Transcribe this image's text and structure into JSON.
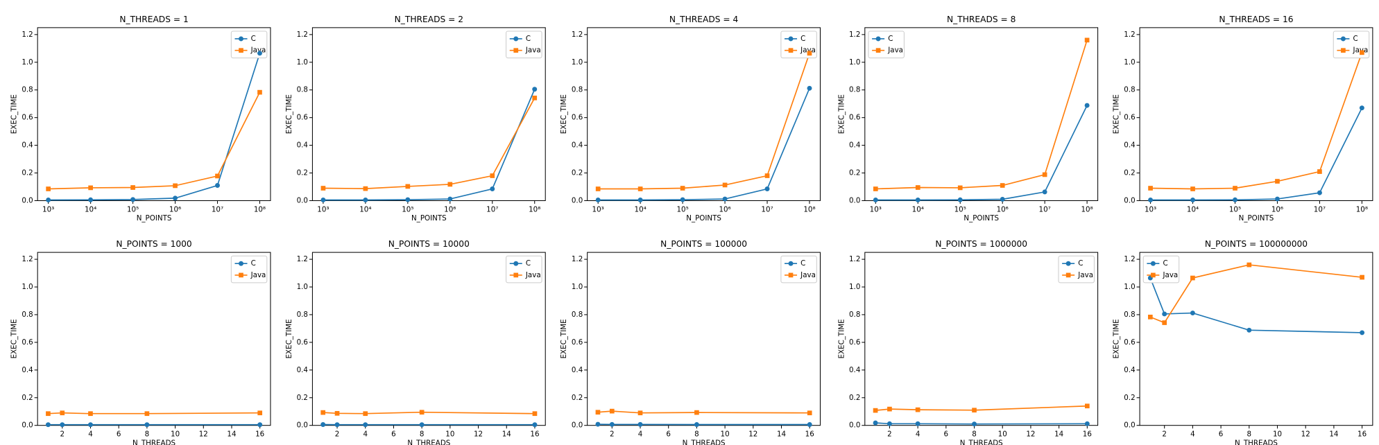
{
  "chart_data": [
    {
      "type": "line",
      "title": "N_THREADS = 1",
      "xlabel": "N_POINTS",
      "ylabel": "EXEC_TIME",
      "xscale": "log",
      "legend": "upper right",
      "x": [
        1000,
        10000,
        100000,
        1000000,
        10000000,
        100000000
      ],
      "series": [
        {
          "name": "C",
          "color": "#1f77b4",
          "marker": "circle",
          "values": [
            0.005,
            0.006,
            0.008,
            0.018,
            0.11,
            1.065
          ]
        },
        {
          "name": "Java",
          "color": "#ff7f0e",
          "marker": "square",
          "values": [
            0.085,
            0.093,
            0.095,
            0.108,
            0.178,
            0.783
          ]
        }
      ],
      "xlim": [
        557,
        179500000
      ],
      "xticks": [
        {
          "value": 1000,
          "label": "10³"
        },
        {
          "value": 10000,
          "label": "10⁴"
        },
        {
          "value": 100000,
          "label": "10⁵"
        },
        {
          "value": 1000000,
          "label": "10⁶"
        },
        {
          "value": 10000000,
          "label": "10⁷"
        },
        {
          "value": 100000000,
          "label": "10⁸"
        }
      ],
      "ylim": [
        0,
        1.25
      ],
      "yticks": [
        {
          "value": 0,
          "label": "0.0"
        },
        0.2,
        0.4,
        0.6,
        0.8,
        {
          "value": 1,
          "label": "1.0"
        },
        1.2
      ]
    },
    {
      "type": "line",
      "title": "N_THREADS = 2",
      "xlabel": "N_POINTS",
      "ylabel": "EXEC_TIME",
      "xscale": "log",
      "legend": "upper right",
      "x": [
        1000,
        10000,
        100000,
        1000000,
        10000000,
        100000000
      ],
      "series": [
        {
          "name": "C",
          "color": "#1f77b4",
          "marker": "circle",
          "values": [
            0.005,
            0.005,
            0.007,
            0.012,
            0.085,
            0.805
          ]
        },
        {
          "name": "Java",
          "color": "#ff7f0e",
          "marker": "square",
          "values": [
            0.09,
            0.087,
            0.103,
            0.118,
            0.18,
            0.742
          ]
        }
      ],
      "xlim": [
        557,
        179500000
      ],
      "xticks": [
        {
          "value": 1000,
          "label": "10³"
        },
        {
          "value": 10000,
          "label": "10⁴"
        },
        {
          "value": 100000,
          "label": "10⁵"
        },
        {
          "value": 1000000,
          "label": "10⁶"
        },
        {
          "value": 10000000,
          "label": "10⁷"
        },
        {
          "value": 100000000,
          "label": "10⁸"
        }
      ],
      "ylim": [
        0,
        1.25
      ],
      "yticks": [
        {
          "value": 0,
          "label": "0.0"
        },
        0.2,
        0.4,
        0.6,
        0.8,
        {
          "value": 1,
          "label": "1.0"
        },
        1.2
      ]
    },
    {
      "type": "line",
      "title": "N_THREADS = 4",
      "xlabel": "N_POINTS",
      "ylabel": "EXEC_TIME",
      "xscale": "log",
      "legend": "upper right",
      "x": [
        1000,
        10000,
        100000,
        1000000,
        10000000,
        100000000
      ],
      "series": [
        {
          "name": "C",
          "color": "#1f77b4",
          "marker": "circle",
          "values": [
            0.005,
            0.005,
            0.007,
            0.012,
            0.085,
            0.812
          ]
        },
        {
          "name": "Java",
          "color": "#ff7f0e",
          "marker": "square",
          "values": [
            0.085,
            0.085,
            0.09,
            0.113,
            0.18,
            1.065
          ]
        }
      ],
      "xlim": [
        557,
        179500000
      ],
      "xticks": [
        {
          "value": 1000,
          "label": "10³"
        },
        {
          "value": 10000,
          "label": "10⁴"
        },
        {
          "value": 100000,
          "label": "10⁵"
        },
        {
          "value": 1000000,
          "label": "10⁶"
        },
        {
          "value": 10000000,
          "label": "10⁷"
        },
        {
          "value": 100000000,
          "label": "10⁸"
        }
      ],
      "ylim": [
        0,
        1.25
      ],
      "yticks": [
        {
          "value": 0,
          "label": "0.0"
        },
        0.2,
        0.4,
        0.6,
        0.8,
        {
          "value": 1,
          "label": "1.0"
        },
        1.2
      ]
    },
    {
      "type": "line",
      "title": "N_THREADS = 8",
      "xlabel": "N_POINTS",
      "ylabel": "EXEC_TIME",
      "xscale": "log",
      "legend": "upper left",
      "x": [
        1000,
        10000,
        100000,
        1000000,
        10000000,
        100000000
      ],
      "series": [
        {
          "name": "C",
          "color": "#1f77b4",
          "marker": "circle",
          "values": [
            0.005,
            0.005,
            0.006,
            0.01,
            0.063,
            0.688
          ]
        },
        {
          "name": "Java",
          "color": "#ff7f0e",
          "marker": "square",
          "values": [
            0.085,
            0.095,
            0.093,
            0.11,
            0.188,
            1.16
          ]
        }
      ],
      "xlim": [
        557,
        179500000
      ],
      "xticks": [
        {
          "value": 1000,
          "label": "10³"
        },
        {
          "value": 10000,
          "label": "10⁴"
        },
        {
          "value": 100000,
          "label": "10⁵"
        },
        {
          "value": 1000000,
          "label": "10⁶"
        },
        {
          "value": 10000000,
          "label": "10⁷"
        },
        {
          "value": 100000000,
          "label": "10⁸"
        }
      ],
      "ylim": [
        0,
        1.25
      ],
      "yticks": [
        {
          "value": 0,
          "label": "0.0"
        },
        0.2,
        0.4,
        0.6,
        0.8,
        {
          "value": 1,
          "label": "1.0"
        },
        1.2
      ]
    },
    {
      "type": "line",
      "title": "N_THREADS = 16",
      "xlabel": "N_POINTS",
      "ylabel": "EXEC_TIME",
      "xscale": "log",
      "legend": "upper right",
      "x": [
        1000,
        10000,
        100000,
        1000000,
        10000000,
        100000000
      ],
      "series": [
        {
          "name": "C",
          "color": "#1f77b4",
          "marker": "circle",
          "values": [
            0.005,
            0.005,
            0.006,
            0.012,
            0.057,
            0.67
          ]
        },
        {
          "name": "Java",
          "color": "#ff7f0e",
          "marker": "square",
          "values": [
            0.09,
            0.085,
            0.09,
            0.14,
            0.21,
            1.07
          ]
        }
      ],
      "xlim": [
        557,
        179500000
      ],
      "xticks": [
        {
          "value": 1000,
          "label": "10³"
        },
        {
          "value": 10000,
          "label": "10⁴"
        },
        {
          "value": 100000,
          "label": "10⁵"
        },
        {
          "value": 1000000,
          "label": "10⁶"
        },
        {
          "value": 10000000,
          "label": "10⁷"
        },
        {
          "value": 100000000,
          "label": "10⁸"
        }
      ],
      "ylim": [
        0,
        1.25
      ],
      "yticks": [
        {
          "value": 0,
          "label": "0.0"
        },
        0.2,
        0.4,
        0.6,
        0.8,
        {
          "value": 1,
          "label": "1.0"
        },
        1.2
      ]
    },
    {
      "type": "line",
      "title": "N_POINTS = 1000",
      "xlabel": "N_THREADS",
      "ylabel": "EXEC_TIME",
      "legend": "upper right",
      "x": [
        1,
        2,
        4,
        8,
        16
      ],
      "series": [
        {
          "name": "C",
          "color": "#1f77b4",
          "marker": "circle",
          "values": [
            0.005,
            0.005,
            0.005,
            0.005,
            0.005
          ]
        },
        {
          "name": "Java",
          "color": "#ff7f0e",
          "marker": "square",
          "values": [
            0.085,
            0.09,
            0.085,
            0.085,
            0.09
          ]
        }
      ],
      "xlim": [
        0.25,
        16.75
      ],
      "xticks": [
        2,
        4,
        6,
        8,
        10,
        12,
        14,
        16
      ],
      "ylim": [
        0,
        1.25
      ],
      "yticks": [
        {
          "value": 0,
          "label": "0.0"
        },
        0.2,
        0.4,
        0.6,
        0.8,
        {
          "value": 1,
          "label": "1.0"
        },
        1.2
      ]
    },
    {
      "type": "line",
      "title": "N_POINTS = 10000",
      "xlabel": "N_THREADS",
      "ylabel": "EXEC_TIME",
      "legend": "upper right",
      "x": [
        1,
        2,
        4,
        8,
        16
      ],
      "series": [
        {
          "name": "C",
          "color": "#1f77b4",
          "marker": "circle",
          "values": [
            0.006,
            0.005,
            0.005,
            0.005,
            0.005
          ]
        },
        {
          "name": "Java",
          "color": "#ff7f0e",
          "marker": "square",
          "values": [
            0.093,
            0.087,
            0.085,
            0.095,
            0.085
          ]
        }
      ],
      "xlim": [
        0.25,
        16.75
      ],
      "xticks": [
        2,
        4,
        6,
        8,
        10,
        12,
        14,
        16
      ],
      "ylim": [
        0,
        1.25
      ],
      "yticks": [
        {
          "value": 0,
          "label": "0.0"
        },
        0.2,
        0.4,
        0.6,
        0.8,
        {
          "value": 1,
          "label": "1.0"
        },
        1.2
      ]
    },
    {
      "type": "line",
      "title": "N_POINTS = 100000",
      "xlabel": "N_THREADS",
      "ylabel": "EXEC_TIME",
      "legend": "upper right",
      "x": [
        1,
        2,
        4,
        8,
        16
      ],
      "series": [
        {
          "name": "C",
          "color": "#1f77b4",
          "marker": "circle",
          "values": [
            0.008,
            0.007,
            0.007,
            0.006,
            0.006
          ]
        },
        {
          "name": "Java",
          "color": "#ff7f0e",
          "marker": "square",
          "values": [
            0.095,
            0.103,
            0.09,
            0.093,
            0.09
          ]
        }
      ],
      "xlim": [
        0.25,
        16.75
      ],
      "xticks": [
        2,
        4,
        6,
        8,
        10,
        12,
        14,
        16
      ],
      "ylim": [
        0,
        1.25
      ],
      "yticks": [
        {
          "value": 0,
          "label": "0.0"
        },
        0.2,
        0.4,
        0.6,
        0.8,
        {
          "value": 1,
          "label": "1.0"
        },
        1.2
      ]
    },
    {
      "type": "line",
      "title": "N_POINTS = 1000000",
      "xlabel": "N_THREADS",
      "ylabel": "EXEC_TIME",
      "legend": "upper right",
      "x": [
        1,
        2,
        4,
        8,
        16
      ],
      "series": [
        {
          "name": "C",
          "color": "#1f77b4",
          "marker": "circle",
          "values": [
            0.018,
            0.012,
            0.012,
            0.01,
            0.012
          ]
        },
        {
          "name": "Java",
          "color": "#ff7f0e",
          "marker": "square",
          "values": [
            0.108,
            0.118,
            0.113,
            0.11,
            0.14
          ]
        }
      ],
      "xlim": [
        0.25,
        16.75
      ],
      "xticks": [
        2,
        4,
        6,
        8,
        10,
        12,
        14,
        16
      ],
      "ylim": [
        0,
        1.25
      ],
      "yticks": [
        {
          "value": 0,
          "label": "0.0"
        },
        0.2,
        0.4,
        0.6,
        0.8,
        {
          "value": 1,
          "label": "1.0"
        },
        1.2
      ]
    },
    {
      "type": "line",
      "title": "N_POINTS = 100000000",
      "xlabel": "N_THREADS",
      "ylabel": "EXEC_TIME",
      "legend": "upper left",
      "x": [
        1,
        2,
        4,
        8,
        16
      ],
      "series": [
        {
          "name": "C",
          "color": "#1f77b4",
          "marker": "circle",
          "values": [
            1.065,
            0.805,
            0.812,
            0.688,
            0.67
          ]
        },
        {
          "name": "Java",
          "color": "#ff7f0e",
          "marker": "square",
          "values": [
            0.783,
            0.742,
            1.065,
            1.16,
            1.07
          ]
        }
      ],
      "xlim": [
        0.25,
        16.75
      ],
      "xticks": [
        2,
        4,
        6,
        8,
        10,
        12,
        14,
        16
      ],
      "ylim": [
        0,
        1.25
      ],
      "yticks": [
        {
          "value": 0,
          "label": "0.0"
        },
        0.2,
        0.4,
        0.6,
        0.8,
        {
          "value": 1,
          "label": "1.0"
        },
        1.2
      ]
    }
  ]
}
